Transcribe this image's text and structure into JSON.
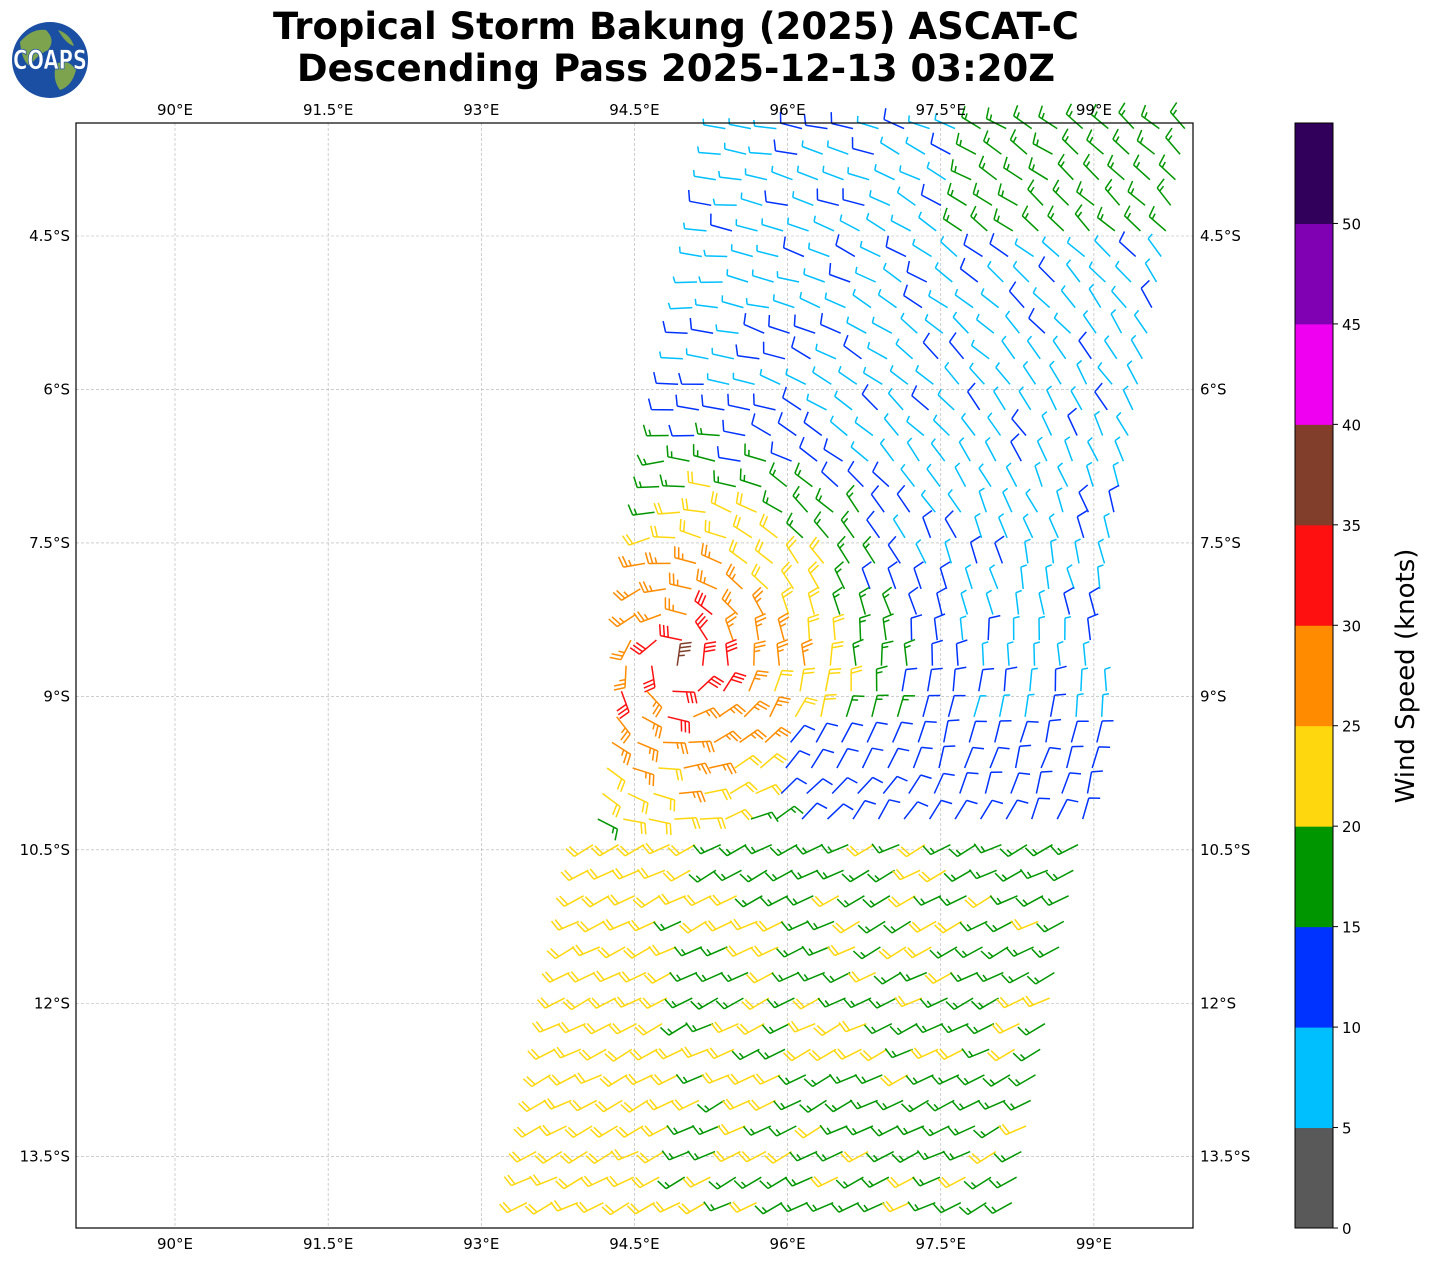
{
  "title": {
    "line1": "Tropical Storm Bakung (2025) ASCAT-C",
    "line2": "Descending Pass 2025-12-13 03:20Z"
  },
  "logo": {
    "text": "COAPS",
    "colors": {
      "ocean": "#1a4fa3",
      "land": "#7da34e",
      "text": "#ffffff"
    }
  },
  "map": {
    "lon_range": [
      89.0,
      100.0
    ],
    "lat_range": [
      -14.2,
      -3.4
    ],
    "lon_ticks": [
      90.0,
      91.5,
      93.0,
      94.5,
      96.0,
      97.5,
      99.0
    ],
    "lon_tick_labels": [
      "90°E",
      "91.5°E",
      "93°E",
      "94.5°E",
      "96°E",
      "97.5°E",
      "99°E"
    ],
    "lat_ticks": [
      -4.5,
      -6.0,
      -7.5,
      -9.0,
      -10.5,
      -12.0,
      -13.5
    ],
    "lat_tick_labels": [
      "4.5°S",
      "6°S",
      "7.5°S",
      "9°S",
      "10.5°S",
      "12°S",
      "13.5°S"
    ],
    "gridlines": true,
    "swath": {
      "description_hidden": true,
      "lat_top": -3.4,
      "lat_bottom": -14.2,
      "west_edge_lon": [
        95.4,
        93.4
      ],
      "east_edge_lon": [
        100.0,
        98.3
      ],
      "spacing_deg": 0.25,
      "storm_center": {
        "lon": 94.9,
        "lat": -8.7
      }
    }
  },
  "colorbar": {
    "label": "Wind Speed (knots)",
    "ticks": [
      0,
      5,
      10,
      15,
      20,
      25,
      30,
      35,
      40,
      45,
      50
    ],
    "max": 55,
    "bins": [
      {
        "from": 0,
        "to": 5,
        "color": "#595959"
      },
      {
        "from": 5,
        "to": 10,
        "color": "#00bfff"
      },
      {
        "from": 10,
        "to": 15,
        "color": "#0033ff"
      },
      {
        "from": 15,
        "to": 20,
        "color": "#009600"
      },
      {
        "from": 20,
        "to": 25,
        "color": "#ffd70f"
      },
      {
        "from": 25,
        "to": 30,
        "color": "#ff8c00"
      },
      {
        "from": 30,
        "to": 35,
        "color": "#ff1010"
      },
      {
        "from": 35,
        "to": 40,
        "color": "#803e2b"
      },
      {
        "from": 40,
        "to": 45,
        "color": "#f000f0"
      },
      {
        "from": 45,
        "to": 50,
        "color": "#8000b4"
      },
      {
        "from": 50,
        "to": 55,
        "color": "#30005a"
      }
    ]
  }
}
